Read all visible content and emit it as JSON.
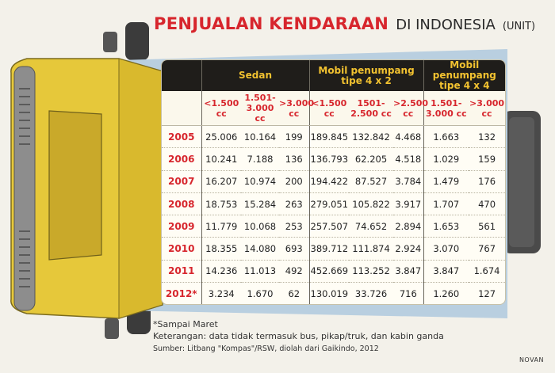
{
  "title": {
    "main": "PENJUALAN KENDARAAN",
    "sub": "DI INDONESIA",
    "unit": "(UNIT)"
  },
  "chart_data": {
    "type": "table",
    "groups": [
      {
        "name": "Sedan",
        "columns": [
          "<1.500 cc",
          "1.501- 3.000 cc",
          ">3.000 cc"
        ]
      },
      {
        "name": "Mobil penumpang tipe 4 x 2",
        "columns": [
          "<1.500 cc",
          "1501- 2.500 cc",
          ">2.500 cc"
        ]
      },
      {
        "name": "Mobil penumpang tipe 4 x 4",
        "columns": [
          "1.501- 3.000 cc",
          ">3.000 cc"
        ]
      }
    ],
    "col_heads": [
      {
        "l1": "<1.500",
        "l2": "cc"
      },
      {
        "l1": "1.501-",
        "l2": "3.000 cc"
      },
      {
        "l1": ">3.000",
        "l2": "cc"
      },
      {
        "l1": "<1.500",
        "l2": "cc"
      },
      {
        "l1": "1501-",
        "l2": "2.500 cc"
      },
      {
        "l1": ">2.500",
        "l2": "cc"
      },
      {
        "l1": "1.501-",
        "l2": "3.000 cc"
      },
      {
        "l1": ">3.000",
        "l2": "cc"
      }
    ],
    "rows": [
      {
        "year": "2005",
        "values": [
          "25.006",
          "10.164",
          "199",
          "189.845",
          "132.842",
          "4.468",
          "1.663",
          "132"
        ]
      },
      {
        "year": "2006",
        "values": [
          "10.241",
          "7.188",
          "136",
          "136.793",
          "62.205",
          "4.518",
          "1.029",
          "159"
        ]
      },
      {
        "year": "2007",
        "values": [
          "16.207",
          "10.974",
          "200",
          "194.422",
          "87.527",
          "3.784",
          "1.479",
          "176"
        ]
      },
      {
        "year": "2008",
        "values": [
          "18.753",
          "15.284",
          "263",
          "279.051",
          "105.822",
          "3.917",
          "1.707",
          "470"
        ]
      },
      {
        "year": "2009",
        "values": [
          "11.779",
          "10.068",
          "253",
          "257.507",
          "74.652",
          "2.894",
          "1.653",
          "561"
        ]
      },
      {
        "year": "2010",
        "values": [
          "18.355",
          "14.080",
          "693",
          "389.712",
          "111.874",
          "2.924",
          "3.070",
          "767"
        ]
      },
      {
        "year": "2011",
        "values": [
          "14.236",
          "11.013",
          "492",
          "452.669",
          "113.252",
          "3.847",
          "3.847",
          "1.674"
        ]
      },
      {
        "year": "2012*",
        "values": [
          "3.234",
          "1.670",
          "62",
          "130.019",
          "33.726",
          "716",
          "1.260",
          "127"
        ]
      }
    ]
  },
  "notes": {
    "asterisk": "*Sampai Maret",
    "keterangan": "Keterangan: data tidak termasuk bus, pikap/truk, dan kabin ganda",
    "source": "Sumber: Litbang \"Kompas\"/RSW, diolah dari Gaikindo, 2012"
  },
  "credit": "NOVAN",
  "colors": {
    "accent_red": "#d7262d",
    "header_dark": "#1f1d1a",
    "header_yellow": "#f2c230",
    "vehicle_yellow": "#e6c83a",
    "vehicle_blue": "#b9cfe0"
  }
}
